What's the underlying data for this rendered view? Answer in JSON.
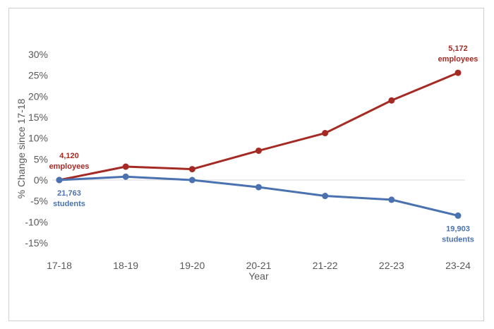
{
  "chart_data": {
    "type": "line",
    "categories": [
      "17-18",
      "18-19",
      "19-20",
      "20-21",
      "21-22",
      "22-23",
      "23-24"
    ],
    "xlabel": "Year",
    "ylabel": "% Change since 17-18",
    "ylim": [
      -15,
      30
    ],
    "yticks": [
      30,
      25,
      20,
      15,
      10,
      5,
      0,
      -5,
      -10,
      -15
    ],
    "ytick_labels": [
      "30%",
      "25%",
      "20%",
      "15%",
      "10%",
      "5%",
      "0%",
      "-5%",
      "-10%",
      "-15%"
    ],
    "grid": false,
    "legend": "none",
    "series": [
      {
        "key": "employees",
        "color": "#a52a24",
        "values": [
          0,
          3.2,
          2.6,
          7.0,
          11.2,
          19.0,
          25.6
        ],
        "annotations": [
          {
            "index": 0,
            "line1": "4,120",
            "line2": "employees"
          },
          {
            "index": 6,
            "line1": "5,172",
            "line2": "employees"
          }
        ]
      },
      {
        "key": "students",
        "color": "#4a72b0",
        "values": [
          0,
          0.8,
          0.0,
          -1.7,
          -3.8,
          -4.7,
          -8.5
        ],
        "annotations": [
          {
            "index": 0,
            "line1": "21,763",
            "line2": "students"
          },
          {
            "index": 6,
            "line1": "19,903",
            "line2": "students"
          }
        ]
      }
    ]
  }
}
